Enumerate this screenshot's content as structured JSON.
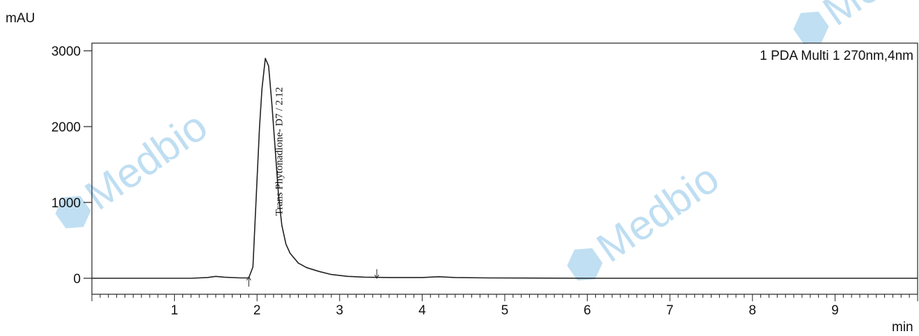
{
  "chart_data": {
    "type": "line",
    "ylabel": "mAU",
    "xlabel": "min",
    "xlim": [
      0,
      10
    ],
    "ylim": [
      -200,
      3100
    ],
    "y_ticks": [
      0,
      1000,
      2000,
      3000
    ],
    "x_ticks": [
      1,
      2,
      3,
      4,
      5,
      6,
      7,
      8,
      9
    ],
    "legend": "1 PDA Multi 1 270nm,4nm",
    "legend_position": "top-right",
    "grid": false,
    "line_color": "#222222",
    "series": [
      {
        "x": [
          0.0,
          1.2,
          1.4,
          1.5,
          1.6,
          1.8,
          1.9,
          1.95,
          2.0,
          2.03,
          2.06,
          2.1,
          2.14,
          2.18,
          2.22,
          2.26,
          2.3,
          2.35,
          2.4,
          2.5,
          2.6,
          2.75,
          2.9,
          3.1,
          3.3,
          3.6,
          4.0,
          4.2,
          4.4,
          4.8,
          6.0,
          8.0,
          10.0
        ],
        "y": [
          0,
          0,
          10,
          25,
          15,
          5,
          5,
          150,
          1300,
          2000,
          2500,
          2900,
          2800,
          2300,
          1700,
          1100,
          700,
          450,
          330,
          200,
          140,
          90,
          50,
          25,
          15,
          10,
          10,
          20,
          10,
          5,
          0,
          0,
          0
        ]
      }
    ],
    "peaks": [
      {
        "label": "Trans Phytonadione- D7 / 2.12",
        "retention_time": 2.12,
        "height": 2900
      }
    ],
    "integration_markers": [
      {
        "x": 1.9,
        "direction": "up"
      },
      {
        "x": 3.45,
        "direction": "down"
      }
    ]
  },
  "watermarks": [
    "Medbio",
    "Medbio",
    "Medbio"
  ],
  "watermark_color": "#8cc4e8"
}
